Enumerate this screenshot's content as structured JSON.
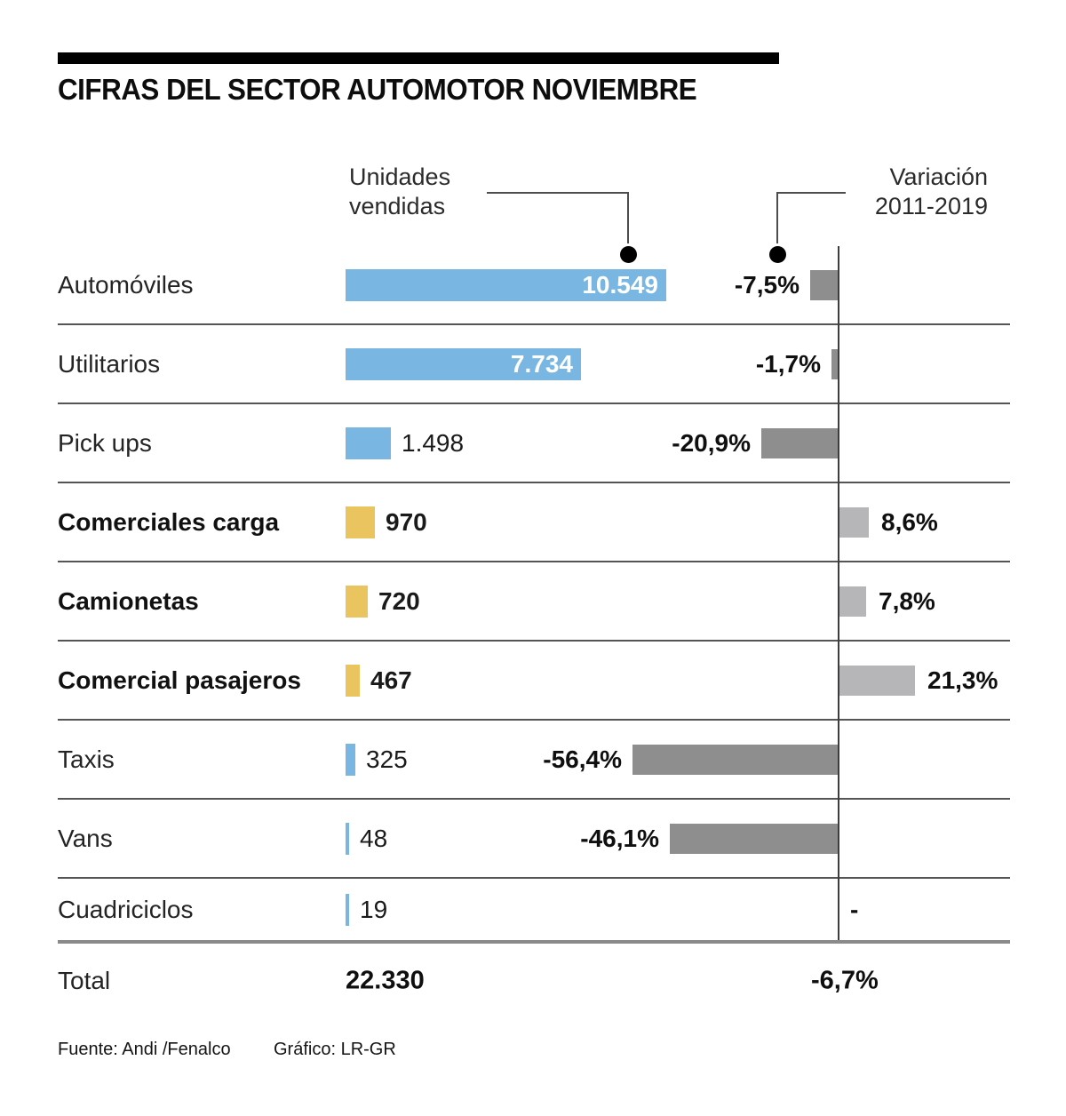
{
  "title": "CIFRAS DEL SECTOR AUTOMOTOR NOVIEMBRE",
  "annotations": {
    "units_line1": "Unidades",
    "units_line2": "vendidas",
    "variation_line1": "Variación",
    "variation_line2": "2011-2019"
  },
  "chart_data": {
    "type": "bar",
    "title": "Cifras del sector automotor noviembre",
    "categories": [
      "Automóviles",
      "Utilitarios",
      "Pick ups",
      "Comerciales carga",
      "Camionetas",
      "Comercial pasajeros",
      "Taxis",
      "Vans",
      "Cuadriciclos"
    ],
    "series": [
      {
        "name": "Unidades vendidas",
        "values": [
          10549,
          7734,
          1498,
          970,
          720,
          467,
          325,
          48,
          19
        ]
      },
      {
        "name": "Variación 2011-2019 (%)",
        "values": [
          -7.5,
          -1.7,
          -20.9,
          8.6,
          7.8,
          21.3,
          -56.4,
          -46.1,
          null
        ]
      }
    ],
    "unit_labels": [
      "10.549",
      "7.734",
      "1.498",
      "970",
      "720",
      "467",
      "325",
      "48",
      "19"
    ],
    "variation_labels": [
      "-7,5%",
      "-1,7%",
      "-20,9%",
      "8,6%",
      "7,8%",
      "21,3%",
      "-56,4%",
      "-46,1%",
      "-"
    ],
    "bar_styles": [
      "blue",
      "blue",
      "blue",
      "yellow",
      "yellow",
      "yellow",
      "blue",
      "blue",
      "blue"
    ],
    "emphasized_rows": [
      3,
      4,
      5
    ],
    "value_inside_bar": [
      true,
      true,
      false,
      false,
      false,
      false,
      false,
      false,
      false
    ],
    "legend_position": "none",
    "grid": false,
    "total": {
      "label": "Total",
      "units_label": "22.330",
      "variation_label": "-6,7%"
    }
  },
  "footer": {
    "source": "Fuente: Andi /Fenalco",
    "credit": "Gráfico: LR-GR"
  },
  "colors": {
    "blue": "#79b6e2",
    "yellow": "#e9c45f",
    "negative_gray": "#8e8e8e",
    "positive_gray": "#b6b6b9",
    "axis": "#3d3d3d",
    "separator": "#555555",
    "total_separator": "#8a8a8a",
    "title_bar": "#000000"
  }
}
